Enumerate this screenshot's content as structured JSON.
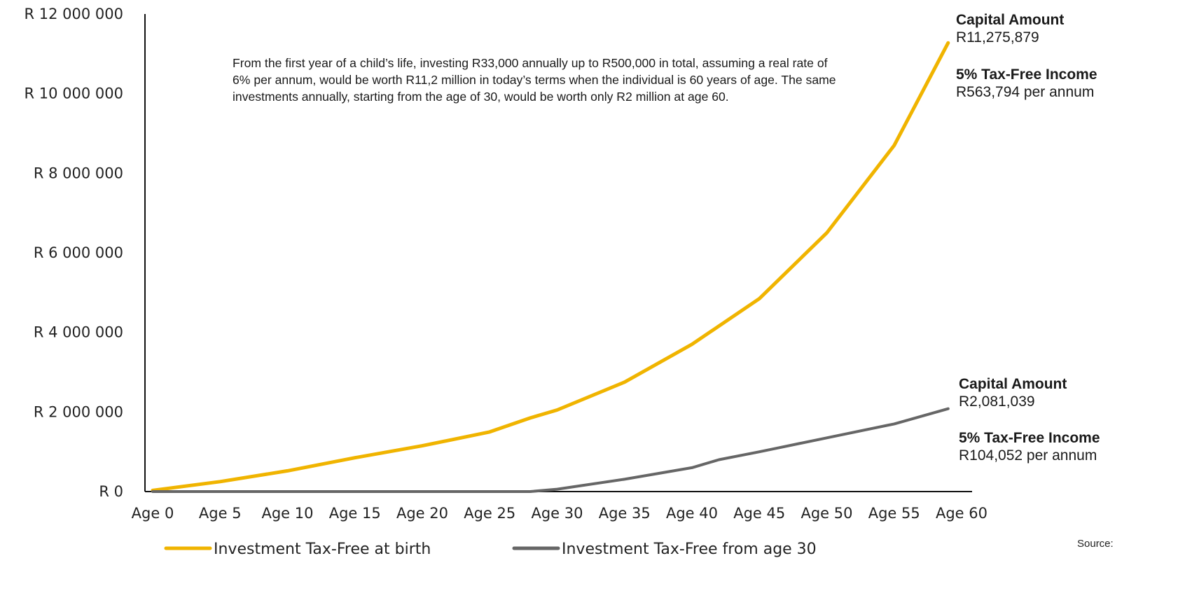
{
  "chart_data": {
    "type": "line",
    "x": [
      "Age 0",
      "Age 5",
      "Age 10",
      "Age 15",
      "Age 20",
      "Age 25",
      "Age 30",
      "Age 35",
      "Age 40",
      "Age 45",
      "Age 50",
      "Age 55",
      "Age 60"
    ],
    "x_ages": [
      0,
      5,
      10,
      15,
      20,
      25,
      30,
      35,
      40,
      45,
      50,
      55,
      60
    ],
    "ylim": [
      0,
      12000000
    ],
    "y_ticks": [
      0,
      2000000,
      4000000,
      6000000,
      8000000,
      10000000,
      12000000
    ],
    "y_tick_labels": [
      "R 0",
      "R 2 000 000",
      "R 4 000 000",
      "R 6 000 000",
      "R 8 000 000",
      "R 10 000 000",
      "R 12 000 000"
    ],
    "series": [
      {
        "name": "Investment Tax-Free at birth",
        "color": "#f0b400",
        "points": [
          [
            0,
            30000
          ],
          [
            5,
            250000
          ],
          [
            10,
            520000
          ],
          [
            15,
            850000
          ],
          [
            20,
            1150000
          ],
          [
            25,
            1500000
          ],
          [
            28,
            1850000
          ],
          [
            30,
            2050000
          ],
          [
            35,
            2750000
          ],
          [
            40,
            3700000
          ],
          [
            45,
            4850000
          ],
          [
            50,
            6500000
          ],
          [
            55,
            8700000
          ],
          [
            59,
            11275879
          ]
        ]
      },
      {
        "name": "Investment Tax-Free from age 30",
        "color": "#666666",
        "points": [
          [
            0,
            0
          ],
          [
            5,
            0
          ],
          [
            10,
            0
          ],
          [
            15,
            0
          ],
          [
            20,
            0
          ],
          [
            25,
            0
          ],
          [
            28,
            0
          ],
          [
            30,
            60000
          ],
          [
            35,
            310000
          ],
          [
            40,
            600000
          ],
          [
            42,
            800000
          ],
          [
            45,
            1000000
          ],
          [
            50,
            1350000
          ],
          [
            55,
            1700000
          ],
          [
            59,
            2081039
          ]
        ]
      }
    ],
    "annotations": [
      {
        "title": "Capital Amount",
        "value": "R11,275,879",
        "income_title": "5% Tax-Free Income",
        "income_value": "R563,794 per annum"
      },
      {
        "title": "Capital Amount",
        "value": "R2,081,039",
        "income_title": "5% Tax-Free Income",
        "income_value": "R104,052 per annum"
      }
    ]
  },
  "note": "From the first year of a child’s life, investing R33,000 annually up to R500,000 in total, assuming a real rate of 6% per annum, would be worth R11,2 million in today’s terms when the individual is 60 years of age. The same investments annually, starting from the age of 30, would be worth only R2 million at age 60.",
  "source_label": "Source:"
}
